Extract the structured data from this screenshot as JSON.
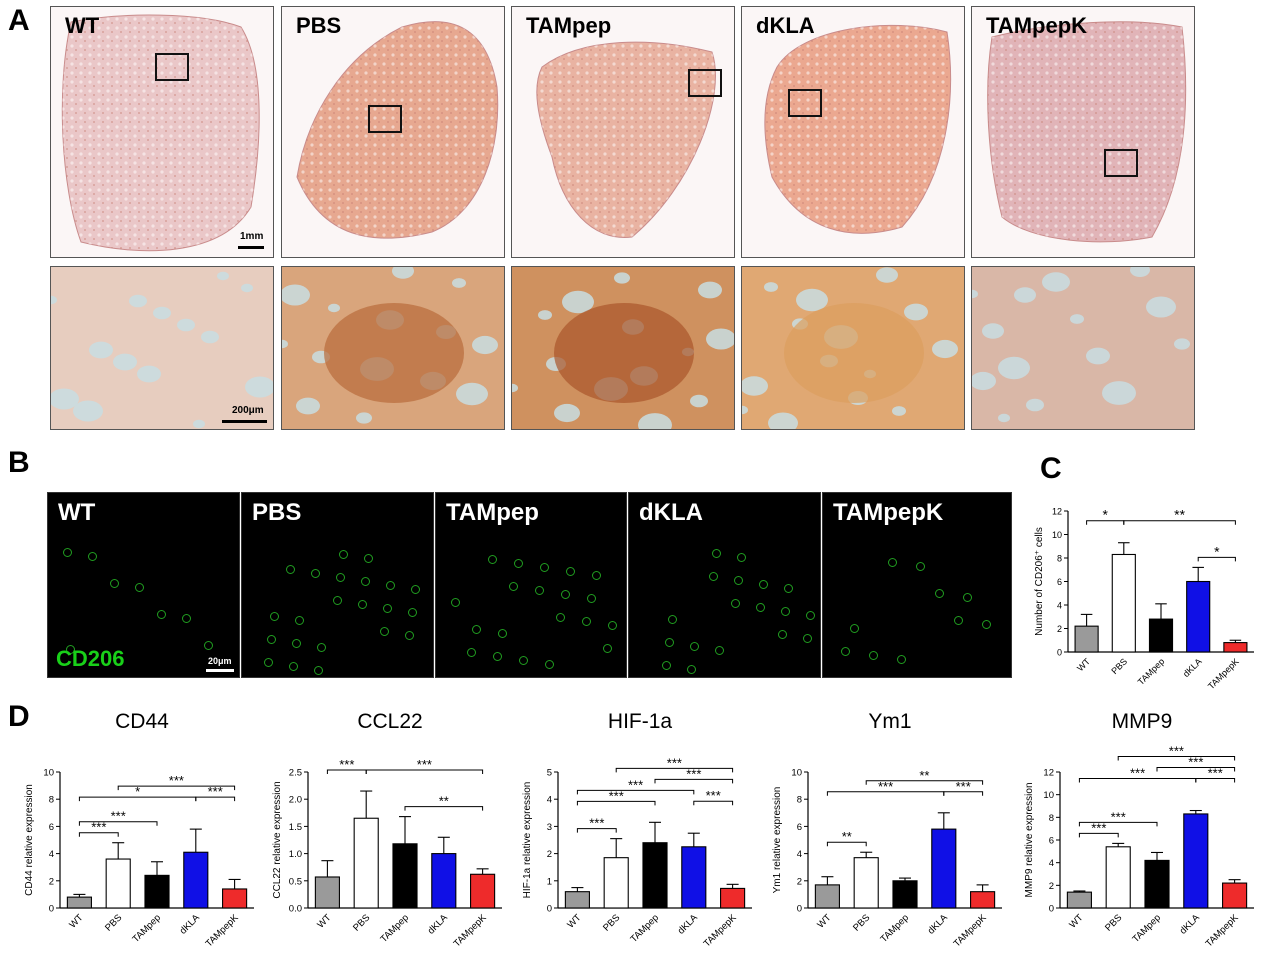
{
  "panels": {
    "a": "A",
    "b": "B",
    "c": "C",
    "d": "D"
  },
  "groups": [
    "WT",
    "PBS",
    "TAMpep",
    "dKLA",
    "TAMpepK"
  ],
  "panel_a": {
    "scale_top": "1mm",
    "scale_bottom": "200μm"
  },
  "panel_b": {
    "marker": "CD206",
    "scale": "20μm"
  },
  "colors": {
    "WT": "#9a9a9a",
    "PBS": "#ffffff",
    "TAMpep": "#000000",
    "dKLA": "#1010e6",
    "TAMpepK": "#ee2b2b"
  },
  "chart_data": [
    {
      "id": "C",
      "type": "bar",
      "title": "",
      "ylabel": "Number of CD206⁺ cells",
      "categories": [
        "WT",
        "PBS",
        "TAMpep",
        "dKLA",
        "TAMpepK"
      ],
      "values": [
        2.2,
        8.3,
        2.8,
        6.0,
        0.8
      ],
      "errors": [
        1.0,
        1.0,
        1.3,
        1.2,
        0.2
      ],
      "ylim": [
        0,
        12
      ],
      "yticks": [
        0,
        2,
        4,
        6,
        8,
        10,
        12
      ],
      "significance": [
        {
          "from": 0,
          "to": 1,
          "label": "*",
          "level": 1
        },
        {
          "from": 1,
          "to": 4,
          "label": "**",
          "level": 1
        },
        {
          "from": 3,
          "to": 4,
          "label": "*",
          "level": 0
        }
      ]
    },
    {
      "id": "CD44",
      "type": "bar",
      "title": "CD44",
      "ylabel": "CD44 relative expression",
      "categories": [
        "WT",
        "PBS",
        "TAMpep",
        "dKLA",
        "TAMpepK"
      ],
      "values": [
        0.8,
        3.6,
        2.4,
        4.1,
        1.4
      ],
      "errors": [
        0.2,
        1.2,
        1.0,
        1.7,
        0.7
      ],
      "ylim": [
        0,
        10
      ],
      "yticks": [
        0,
        2,
        4,
        6,
        8,
        10
      ],
      "significance": [
        {
          "from": 0,
          "to": 1,
          "label": "***",
          "level": 0
        },
        {
          "from": 0,
          "to": 2,
          "label": "***",
          "level": 1
        },
        {
          "from": 0,
          "to": 3,
          "label": "*",
          "level": 2
        },
        {
          "from": 1,
          "to": 4,
          "label": "***",
          "level": 3
        },
        {
          "from": 3,
          "to": 4,
          "label": "***",
          "level": 2
        }
      ]
    },
    {
      "id": "CCL22",
      "type": "bar",
      "title": "CCL22",
      "ylabel": "CCL22 relative expression",
      "categories": [
        "WT",
        "PBS",
        "TAMpep",
        "dKLA",
        "TAMpepK"
      ],
      "values": [
        0.57,
        1.65,
        1.18,
        1.0,
        0.62
      ],
      "errors": [
        0.3,
        0.5,
        0.5,
        0.3,
        0.1
      ],
      "ylim": [
        0,
        2.5
      ],
      "yticks": [
        0.0,
        0.5,
        1.0,
        1.5,
        2.0,
        2.5
      ],
      "significance": [
        {
          "from": 0,
          "to": 1,
          "label": "***",
          "level": 1
        },
        {
          "from": 1,
          "to": 4,
          "label": "***",
          "level": 1
        },
        {
          "from": 2,
          "to": 4,
          "label": "**",
          "level": 0
        }
      ]
    },
    {
      "id": "HIF-1a",
      "type": "bar",
      "title": "HIF-1a",
      "ylabel": "HIF-1a relative expression",
      "categories": [
        "WT",
        "PBS",
        "TAMpep",
        "dKLA",
        "TAMpepK"
      ],
      "values": [
        0.6,
        1.85,
        2.4,
        2.25,
        0.72
      ],
      "errors": [
        0.15,
        0.7,
        0.75,
        0.5,
        0.15
      ],
      "ylim": [
        0,
        5
      ],
      "yticks": [
        0,
        1,
        2,
        3,
        4,
        5
      ],
      "significance": [
        {
          "from": 0,
          "to": 1,
          "label": "***",
          "level": 0
        },
        {
          "from": 0,
          "to": 2,
          "label": "***",
          "level": 1
        },
        {
          "from": 0,
          "to": 3,
          "label": "***",
          "level": 2
        },
        {
          "from": 1,
          "to": 4,
          "label": "***",
          "level": 4
        },
        {
          "from": 2,
          "to": 4,
          "label": "***",
          "level": 3
        },
        {
          "from": 3,
          "to": 4,
          "label": "***",
          "level": 2
        }
      ]
    },
    {
      "id": "Ym1",
      "type": "bar",
      "title": "Ym1",
      "ylabel": "Ym1 relative expression",
      "categories": [
        "WT",
        "PBS",
        "TAMpep",
        "dKLA",
        "TAMpepK"
      ],
      "values": [
        1.7,
        3.7,
        2.0,
        5.8,
        1.2
      ],
      "errors": [
        0.6,
        0.4,
        0.2,
        1.2,
        0.5
      ],
      "ylim": [
        0,
        10
      ],
      "yticks": [
        0,
        2,
        4,
        6,
        8,
        10
      ],
      "significance": [
        {
          "from": 0,
          "to": 1,
          "label": "**",
          "level": 0
        },
        {
          "from": 0,
          "to": 3,
          "label": "***",
          "level": 1
        },
        {
          "from": 1,
          "to": 4,
          "label": "**",
          "level": 2
        },
        {
          "from": 3,
          "to": 4,
          "label": "***",
          "level": 1
        }
      ]
    },
    {
      "id": "MMP9",
      "type": "bar",
      "title": "MMP9",
      "ylabel": "MMP9 relative expression",
      "categories": [
        "WT",
        "PBS",
        "TAMpep",
        "dKLA",
        "TAMpepK"
      ],
      "values": [
        1.4,
        5.4,
        4.2,
        8.3,
        2.2
      ],
      "errors": [
        0.1,
        0.3,
        0.7,
        0.3,
        0.3
      ],
      "ylim": [
        0,
        12
      ],
      "yticks": [
        0,
        2,
        4,
        6,
        8,
        10,
        12
      ],
      "significance": [
        {
          "from": 0,
          "to": 1,
          "label": "***",
          "level": 0
        },
        {
          "from": 0,
          "to": 2,
          "label": "***",
          "level": 1
        },
        {
          "from": 0,
          "to": 3,
          "label": "***",
          "level": 2
        },
        {
          "from": 1,
          "to": 4,
          "label": "***",
          "level": 4
        },
        {
          "from": 2,
          "to": 4,
          "label": "***",
          "level": 3
        },
        {
          "from": 3,
          "to": 4,
          "label": "***",
          "level": 2
        }
      ]
    }
  ]
}
